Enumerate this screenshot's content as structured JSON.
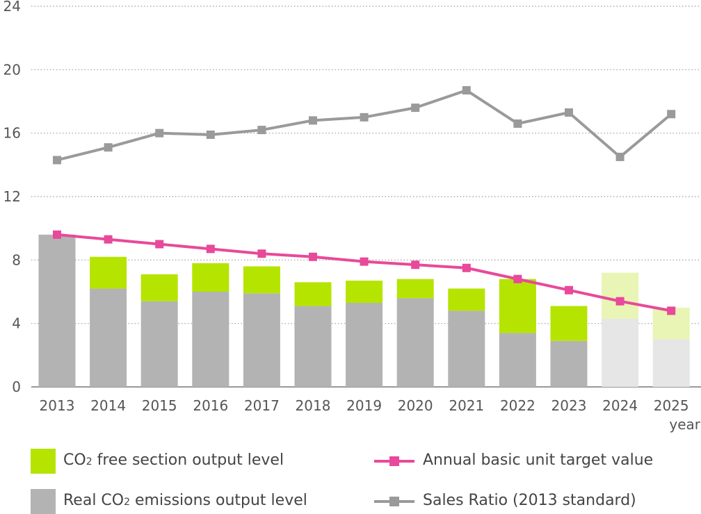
{
  "chart_data": {
    "type": "bar+line",
    "categories": [
      "2013",
      "2014",
      "2015",
      "2016",
      "2017",
      "2018",
      "2019",
      "2020",
      "2021",
      "2022",
      "2023",
      "2024",
      "2025"
    ],
    "x_unit_label": "year",
    "y_ticks": [
      0,
      4,
      8,
      12,
      16,
      20,
      24
    ],
    "ylim": [
      0,
      24
    ],
    "grid": true,
    "stacked_bars": [
      {
        "name": "Real CO2 emissions output level",
        "color": "#b3b3b3",
        "projected_color": "#e6e6e6",
        "values": [
          9.6,
          6.2,
          5.4,
          6.0,
          5.9,
          5.1,
          5.3,
          5.6,
          4.8,
          3.4,
          2.9,
          4.3,
          3.0
        ]
      },
      {
        "name": "CO2 free section output level",
        "color": "#b5e400",
        "projected_color": "#e8f5b4",
        "values": [
          0.0,
          2.0,
          1.7,
          1.8,
          1.7,
          1.5,
          1.4,
          1.2,
          1.4,
          3.4,
          2.2,
          2.9,
          2.0
        ]
      }
    ],
    "projected_from_index": 11,
    "lines": [
      {
        "name": "Annual basic unit target value",
        "color": "#e8499a",
        "values": [
          9.6,
          9.3,
          9.0,
          8.7,
          8.4,
          8.2,
          7.9,
          7.7,
          7.5,
          6.8,
          6.1,
          5.4,
          4.8
        ]
      },
      {
        "name": "Sales Ratio (2013 standard)",
        "color": "#9a9a9a",
        "values": [
          14.3,
          15.1,
          16.0,
          15.9,
          16.2,
          16.8,
          17.0,
          17.6,
          18.7,
          16.6,
          17.3,
          14.5,
          17.2
        ]
      }
    ]
  },
  "legend": {
    "co2_free": {
      "pre": "CO",
      "sub": "2",
      "post": " free section output level"
    },
    "real_co2": {
      "pre": "Real CO",
      "sub": "2",
      "post": " emissions output level"
    },
    "target": "Annual basic unit target value",
    "sales": "Sales Ratio (2013 standard)"
  }
}
